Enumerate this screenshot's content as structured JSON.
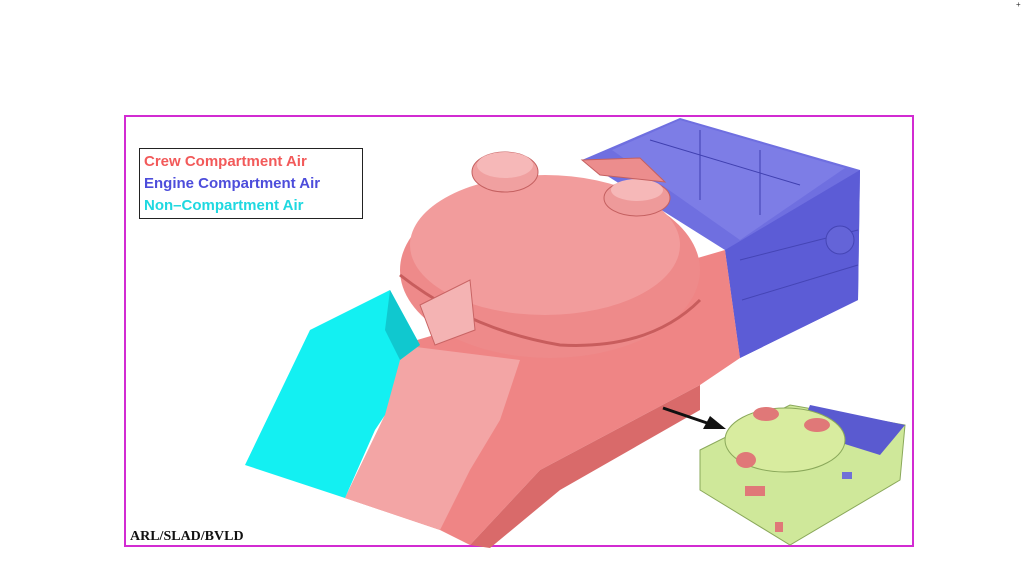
{
  "legend": {
    "items": [
      {
        "label": "Crew Compartment Air",
        "color": "#f25a5a"
      },
      {
        "label": "Engine Compartment Air",
        "color": "#4d4ddb"
      },
      {
        "label": "Non–Compartment Air",
        "color": "#1fd8e0"
      }
    ]
  },
  "credit": "ARL/SLAD/BVLD",
  "corner_mark": "+",
  "colors": {
    "frame": "#d22bd2",
    "crew": "#ef8a8a",
    "crew_light": "#f3b0b0",
    "engine": "#6b6be0",
    "non_compartment": "#13f0f2",
    "inset_model": "#cfe89a"
  }
}
